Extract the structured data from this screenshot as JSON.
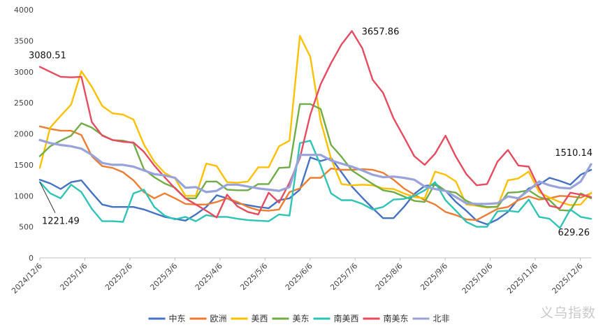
{
  "chart_data": {
    "type": "line",
    "title": "",
    "xlabel": "",
    "ylabel": "",
    "ylim": [
      0,
      4000
    ],
    "yticks": [
      0,
      500,
      1000,
      1500,
      2000,
      2500,
      3000,
      3500,
      4000
    ],
    "x_ticks": [
      "2024/12/6",
      "2025/1/6",
      "2025/2/6",
      "2025/3/6",
      "2025/4/6",
      "2025/5/6",
      "2025/6/6",
      "2025/7/6",
      "2025/8/6",
      "2025/9/6",
      "2025/10/6",
      "2025/11/6",
      "2025/12/6"
    ],
    "points_per_tick": 4.33,
    "n_points": 54,
    "series": [
      {
        "name": "中东",
        "color": "#4472c4",
        "values": [
          1260,
          1200,
          1110,
          1220,
          1250,
          1050,
          860,
          820,
          820,
          820,
          780,
          720,
          660,
          630,
          600,
          700,
          820,
          1010,
          960,
          880,
          850,
          820,
          800,
          930,
          960,
          1100,
          1620,
          1560,
          1610,
          1380,
          1150,
          970,
          800,
          640,
          640,
          820,
          1030,
          1160,
          1180,
          1080,
          900,
          760,
          600,
          540,
          620,
          740,
          950,
          1120,
          1180,
          1290,
          1240,
          1180,
          1340,
          1420
        ]
      },
      {
        "name": "欧洲",
        "color": "#ed7d31",
        "values": [
          2120,
          2080,
          2050,
          2050,
          1980,
          1640,
          1480,
          1450,
          1380,
          1250,
          1060,
          960,
          1040,
          960,
          870,
          860,
          860,
          900,
          960,
          900,
          820,
          770,
          760,
          780,
          1060,
          1120,
          1290,
          1290,
          1440,
          1420,
          1420,
          1430,
          1420,
          1370,
          1260,
          1120,
          1020,
          930,
          860,
          740,
          690,
          620,
          610,
          700,
          790,
          820,
          930,
          990,
          940,
          960,
          1000,
          990,
          970,
          1040
        ]
      },
      {
        "name": "美西",
        "color": "#ffc000",
        "values": [
          1450,
          2100,
          2290,
          2470,
          3010,
          2760,
          2450,
          2330,
          2310,
          2230,
          1830,
          1550,
          1370,
          1280,
          1000,
          1000,
          1520,
          1480,
          1220,
          1210,
          1230,
          1460,
          1460,
          1800,
          1890,
          3580,
          3240,
          2210,
          1600,
          1190,
          1170,
          1180,
          1170,
          1120,
          1110,
          1040,
          980,
          960,
          1390,
          1340,
          1230,
          860,
          840,
          810,
          830,
          1250,
          1280,
          1390,
          1060,
          970,
          900,
          850,
          860,
          1050
        ]
      },
      {
        "name": "美东",
        "color": "#70ad47",
        "values": [
          1640,
          1800,
          1890,
          1970,
          2170,
          2100,
          1980,
          1900,
          1890,
          1850,
          1430,
          1300,
          1200,
          1130,
          960,
          960,
          1230,
          1230,
          1100,
          1090,
          1090,
          1190,
          1190,
          1450,
          1460,
          2480,
          2480,
          2400,
          1820,
          1630,
          1410,
          1300,
          1190,
          1090,
          1060,
          990,
          920,
          900,
          1200,
          1080,
          1050,
          920,
          850,
          820,
          820,
          1050,
          1060,
          1090,
          980,
          930,
          770,
          760,
          1040,
          960
        ]
      },
      {
        "name": "南美西",
        "color": "#2ec4b6",
        "values": [
          1221.49,
          1040,
          960,
          1180,
          1060,
          790,
          590,
          590,
          580,
          1040,
          1100,
          820,
          680,
          620,
          660,
          590,
          690,
          660,
          660,
          630,
          610,
          600,
          590,
          700,
          680,
          1850,
          1890,
          1490,
          1040,
          930,
          930,
          870,
          780,
          820,
          940,
          950,
          1000,
          1090,
          1220,
          930,
          760,
          580,
          500,
          500,
          750,
          760,
          740,
          940,
          660,
          630,
          480,
          780,
          660,
          629.26
        ]
      },
      {
        "name": "南美东",
        "color": "#e84a5f",
        "values": [
          3080.51,
          3000,
          2920,
          2910,
          2920,
          2190,
          1970,
          1900,
          1870,
          1860,
          1710,
          1490,
          1300,
          1120,
          960,
          860,
          760,
          650,
          1020,
          830,
          740,
          700,
          1050,
          890,
          1210,
          1610,
          2310,
          2800,
          3140,
          3440,
          3657.86,
          3380,
          2870,
          2660,
          2250,
          1950,
          1640,
          1500,
          1680,
          1970,
          1630,
          1350,
          1170,
          1190,
          1550,
          1740,
          1490,
          1470,
          1120,
          840,
          800,
          1050,
          1020,
          980
        ]
      },
      {
        "name": "北非",
        "color": "#99a3db",
        "values": [
          1900,
          1850,
          1820,
          1800,
          1760,
          1660,
          1530,
          1500,
          1500,
          1470,
          1410,
          1350,
          1330,
          1290,
          1130,
          1140,
          1060,
          1080,
          1180,
          1180,
          1150,
          1120,
          1100,
          1080,
          1140,
          1660,
          1660,
          1660,
          1570,
          1520,
          1470,
          1410,
          1340,
          1300,
          1310,
          1290,
          1260,
          1150,
          1110,
          1080,
          980,
          880,
          870,
          870,
          880,
          990,
          960,
          1090,
          1230,
          1170,
          1130,
          1120,
          1230,
          1510.14
        ]
      }
    ],
    "annotations": [
      {
        "series": "南美东",
        "index": 0,
        "value": "3080.51",
        "place": "above-left"
      },
      {
        "series": "南美东",
        "index": 30,
        "value": "3657.86",
        "place": "right"
      },
      {
        "series": "南美西",
        "index": 0,
        "value": "1221.49",
        "place": "below-leader"
      },
      {
        "series": "北非",
        "index": 53,
        "value": "1510.14",
        "place": "above-left"
      },
      {
        "series": "南美西",
        "index": 53,
        "value": "629.26",
        "place": "below-left"
      }
    ],
    "legend_position": "bottom-center",
    "grid": false
  },
  "watermark": "义乌指数"
}
